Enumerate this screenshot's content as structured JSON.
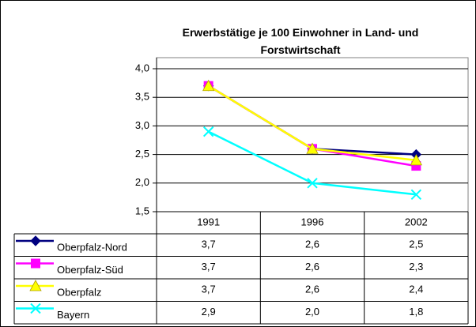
{
  "chart_data": {
    "type": "line",
    "title": "Erwerbstätige je 100 Einwohner in Land- und Forstwirtschaft",
    "categories": [
      "1991",
      "1996",
      "2002"
    ],
    "series": [
      {
        "name": "Oberpfalz-Nord",
        "color": "#000080",
        "marker": "diamond",
        "values": [
          3.7,
          2.6,
          2.5
        ],
        "value_labels": [
          "3,7",
          "2,6",
          "2,5"
        ]
      },
      {
        "name": "Oberpfalz-Süd",
        "color": "#ff00ff",
        "marker": "square",
        "values": [
          3.7,
          2.6,
          2.3
        ],
        "value_labels": [
          "3,7",
          "2,6",
          "2,3"
        ]
      },
      {
        "name": "Oberpfalz",
        "color": "#ffff00",
        "marker": "triangle",
        "values": [
          3.7,
          2.6,
          2.4
        ],
        "value_labels": [
          "3,7",
          "2,6",
          "2,4"
        ]
      },
      {
        "name": "Bayern",
        "color": "#00ffff",
        "marker": "x",
        "values": [
          2.9,
          2.0,
          1.8
        ],
        "value_labels": [
          "2,9",
          "2,0",
          "1,8"
        ]
      }
    ],
    "ylim": [
      1.5,
      4.0
    ],
    "yticks": [
      {
        "value": 1.5,
        "label": "1,5"
      },
      {
        "value": 2.0,
        "label": "2,0"
      },
      {
        "value": 2.5,
        "label": "2,5"
      },
      {
        "value": 3.0,
        "label": "3,0"
      },
      {
        "value": 3.5,
        "label": "3,5"
      },
      {
        "value": 4.0,
        "label": "4,0"
      }
    ],
    "grid": true
  }
}
